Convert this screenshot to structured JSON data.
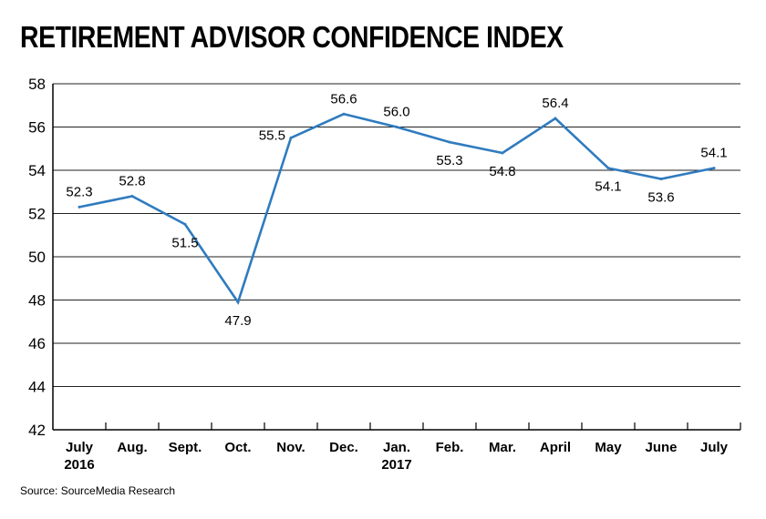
{
  "chart_data": {
    "type": "line",
    "title": "RETIREMENT ADVISOR CONFIDENCE INDEX",
    "source": "Source: SourceMedia Research",
    "categories": [
      [
        "July",
        "2016"
      ],
      [
        "Aug."
      ],
      [
        "Sept."
      ],
      [
        "Oct."
      ],
      [
        "Nov."
      ],
      [
        "Dec."
      ],
      [
        "Jan.",
        "2017"
      ],
      [
        "Feb."
      ],
      [
        "Mar."
      ],
      [
        "April"
      ],
      [
        "May"
      ],
      [
        "June"
      ],
      [
        "July"
      ]
    ],
    "series": [
      {
        "values": [
          52.3,
          52.8,
          51.5,
          47.9,
          55.5,
          56.6,
          56.0,
          55.3,
          54.8,
          56.4,
          54.1,
          53.6,
          54.1
        ],
        "labels": [
          "52.3",
          "52.8",
          "51.5",
          "47.9",
          "55.5",
          "56.6",
          "56.0",
          "55.3",
          "54.8",
          "56.4",
          "54.1",
          "53.6",
          "54.1"
        ],
        "label_side": [
          "above",
          "above",
          "below",
          "below",
          "left",
          "above",
          "above",
          "below",
          "below",
          "above",
          "below",
          "below",
          "above"
        ],
        "color": "#2f7bbf"
      }
    ],
    "ylim": [
      42,
      58
    ],
    "yticks": [
      58,
      56,
      54,
      52,
      50,
      48,
      46,
      44,
      42
    ],
    "grid": true
  }
}
